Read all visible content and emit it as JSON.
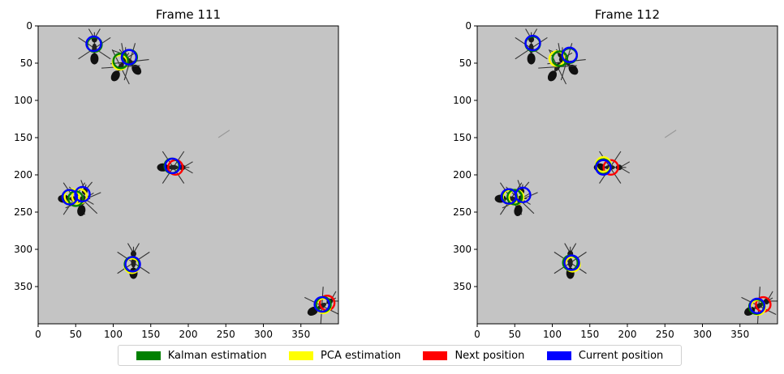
{
  "chart_data": [
    {
      "type": "image",
      "title": "Frame 111",
      "xlim": [
        0,
        400
      ],
      "ylim": [
        400,
        0
      ],
      "xticks": [
        0,
        50,
        100,
        150,
        200,
        250,
        300,
        350
      ],
      "yticks": [
        0,
        50,
        100,
        150,
        200,
        250,
        300,
        350
      ],
      "markers": {
        "kalman": [
          [
            75,
            25
          ],
          [
            110,
            47
          ],
          [
            122,
            42
          ],
          [
            178,
            188
          ],
          [
            42,
            230
          ],
          [
            50,
            232
          ],
          [
            125,
            320
          ],
          [
            380,
            374
          ]
        ],
        "pca": [
          [
            109,
            49
          ],
          [
            45,
            229
          ],
          [
            55,
            229
          ],
          [
            125,
            322
          ],
          [
            380,
            376
          ]
        ],
        "next": [
          [
            183,
            190
          ],
          [
            385,
            372
          ]
        ],
        "current": [
          [
            74,
            24
          ],
          [
            121,
            42
          ],
          [
            179,
            188
          ],
          [
            42,
            230
          ],
          [
            59,
            226
          ],
          [
            126,
            320
          ],
          [
            378,
            374
          ]
        ]
      }
    },
    {
      "type": "image",
      "title": "Frame 112",
      "xlim": [
        0,
        400
      ],
      "ylim": [
        400,
        0
      ],
      "xticks": [
        0,
        50,
        100,
        150,
        200,
        250,
        300,
        350
      ],
      "yticks": [
        0,
        50,
        100,
        150,
        200,
        250,
        300,
        350
      ],
      "markers": {
        "kalman": [
          [
            74,
            24
          ],
          [
            110,
            44
          ],
          [
            123,
            40
          ],
          [
            168,
            189
          ],
          [
            43,
            229
          ],
          [
            50,
            230
          ],
          [
            124,
            318
          ],
          [
            372,
            377
          ]
        ],
        "pca": [
          [
            106,
            44
          ],
          [
            168,
            186
          ],
          [
            44,
            230
          ],
          [
            52,
            230
          ],
          [
            127,
            320
          ],
          [
            374,
            378
          ]
        ],
        "next": [
          [
            178,
            190
          ],
          [
            381,
            374
          ]
        ],
        "current": [
          [
            74,
            23
          ],
          [
            123,
            39
          ],
          [
            168,
            190
          ],
          [
            42,
            229
          ],
          [
            61,
            227
          ],
          [
            126,
            318
          ],
          [
            373,
            376
          ]
        ]
      }
    }
  ],
  "legend": [
    {
      "label": "Kalman estimation",
      "color": "#008000"
    },
    {
      "label": "PCA estimation",
      "color": "#ffff00"
    },
    {
      "label": "Next position",
      "color": "#ff0000"
    },
    {
      "label": "Current position",
      "color": "#0000ff"
    }
  ],
  "background_color": "#c4c4c4",
  "ants": [
    [
      75,
      30,
      0
    ],
    [
      122,
      48,
      -40
    ],
    [
      110,
      55,
      30
    ],
    [
      180,
      190,
      90
    ],
    [
      48,
      232,
      90
    ],
    [
      60,
      234,
      10
    ],
    [
      127,
      318,
      0
    ],
    [
      378,
      376,
      60
    ]
  ]
}
